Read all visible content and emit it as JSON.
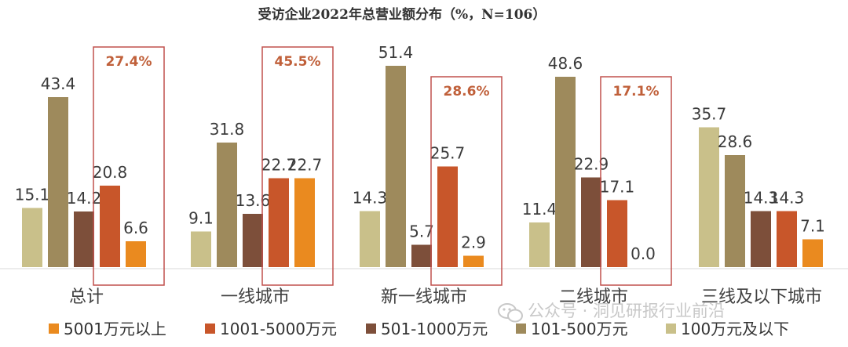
{
  "chart_data": {
    "type": "bar",
    "title": "受访企业2022年总营业额分布（%，N=106）",
    "categories": [
      "总计",
      "一线城市",
      "新一线城市",
      "二线城市",
      "三线及以下城市"
    ],
    "series": [
      {
        "name": "100万元及以下",
        "color": "#c9c08a",
        "values": [
          15.1,
          9.1,
          14.3,
          11.4,
          35.7
        ],
        "labels": [
          "15.1",
          "9.1",
          "14.3",
          "11.4",
          "35.7"
        ]
      },
      {
        "name": "101-500万元",
        "color": "#9e8a5c",
        "values": [
          43.4,
          31.8,
          51.4,
          48.6,
          28.6
        ],
        "labels": [
          "43.4",
          "31.8",
          "51.4",
          "48.6",
          "28.6"
        ]
      },
      {
        "name": "501-1000万元",
        "color": "#7d4f3a",
        "values": [
          14.2,
          13.6,
          5.7,
          22.9,
          14.3
        ],
        "labels": [
          "14.2",
          "13.6",
          "5.7",
          "22.9",
          "14.3"
        ]
      },
      {
        "name": "1001-5000万元",
        "color": "#c8562a",
        "values": [
          20.8,
          22.7,
          25.7,
          17.1,
          14.3
        ],
        "labels": [
          "20.8",
          "22.7",
          "25.7",
          "17.1",
          "14.3"
        ]
      },
      {
        "name": "5001万元以上",
        "color": "#ea8a1f",
        "values": [
          6.6,
          22.7,
          2.9,
          0.0,
          7.1
        ],
        "labels": [
          "6.6",
          "22.7",
          "2.9",
          "0.0",
          "7.1"
        ]
      }
    ],
    "callouts": [
      {
        "category": "总计",
        "label": "27.4%"
      },
      {
        "category": "一线城市",
        "label": "45.5%"
      },
      {
        "category": "新一线城市",
        "label": "28.6%"
      },
      {
        "category": "二线城市",
        "label": "17.1%"
      }
    ],
    "legend": {
      "placement": "bottom",
      "order": [
        "5001万元以上",
        "1001-5000万元",
        "501-1000万元",
        "101-500万元",
        "100万元及以下"
      ]
    },
    "ylim": [
      0,
      55
    ],
    "grid": false,
    "highlight_color": "#c0504d"
  },
  "watermark": "公众号 · 洞见研报行业前沿"
}
